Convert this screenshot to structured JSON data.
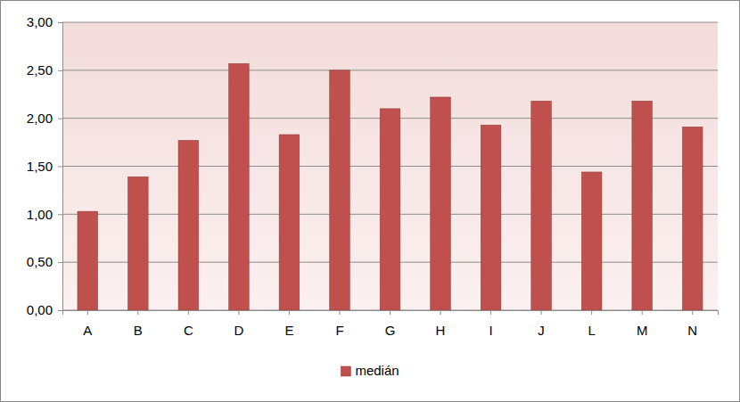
{
  "chart_data": {
    "type": "bar",
    "categories": [
      "A",
      "B",
      "C",
      "D",
      "E",
      "F",
      "G",
      "H",
      "I",
      "J",
      "L",
      "M",
      "N"
    ],
    "series": [
      {
        "name": "medián",
        "color": "#c0504d",
        "values": [
          1.03,
          1.39,
          1.77,
          2.57,
          1.83,
          2.5,
          2.1,
          2.22,
          1.93,
          2.18,
          1.44,
          2.18,
          1.91
        ]
      }
    ],
    "ylim": [
      0,
      3
    ],
    "yticks": [
      {
        "value": 0,
        "label": "0,00"
      },
      {
        "value": 0.5,
        "label": "0,50"
      },
      {
        "value": 1,
        "label": "1,00"
      },
      {
        "value": 1.5,
        "label": "1,50"
      },
      {
        "value": 2,
        "label": "2,00"
      },
      {
        "value": 2.5,
        "label": "2,50"
      },
      {
        "value": 3,
        "label": "3,00"
      }
    ],
    "grid": true,
    "legend": "bottom"
  }
}
